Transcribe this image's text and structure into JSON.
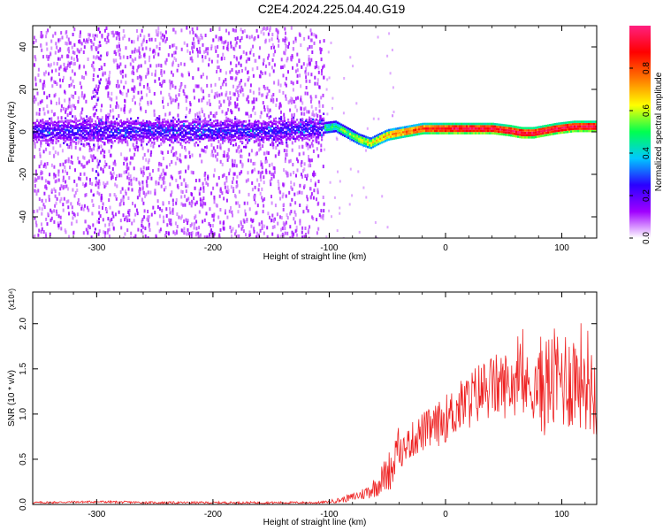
{
  "title": "C2E4.2024.225.04.40.G19",
  "chart_data": [
    {
      "type": "heatmap",
      "name": "spectrogram",
      "xlabel": "Height of straight line (km)",
      "ylabel": "Frequency (Hz)",
      "xlim": [
        -355,
        130
      ],
      "ylim": [
        -50,
        50
      ],
      "x_ticks": [
        "-300",
        "-200",
        "-100",
        "0",
        "100"
      ],
      "x_tick_values": [
        -300,
        -200,
        -100,
        0,
        100
      ],
      "y_ticks": [
        "40",
        "20",
        "0",
        "-20",
        "-40"
      ],
      "y_tick_values": [
        40,
        20,
        0,
        -20,
        -40
      ],
      "colorbar": {
        "label": "Normalized spectral amplitude",
        "ticks": [
          "0.0",
          "0.2",
          "0.4",
          "0.6",
          "0.8"
        ],
        "tick_values": [
          0.0,
          0.2,
          0.4,
          0.6,
          0.8
        ],
        "range": [
          0,
          1
        ],
        "colors": [
          "#ffffff",
          "#a000ff",
          "#2a00ff",
          "#00c8ff",
          "#00ff50",
          "#ffff00",
          "#ff7800",
          "#ff0000",
          "#ff2080"
        ]
      },
      "ridge": {
        "x": [
          -355,
          -300,
          -250,
          -200,
          -150,
          -110,
          -95,
          -85,
          -75,
          -65,
          -58,
          -50,
          -40,
          -30,
          -20,
          -10,
          0,
          20,
          40,
          55,
          65,
          75,
          85,
          95,
          110,
          130
        ],
        "y": [
          1,
          1,
          1,
          1,
          1,
          2,
          3,
          0,
          -3,
          -5,
          -3,
          -1,
          0,
          1,
          2,
          2,
          2,
          2,
          2,
          1,
          0,
          0,
          1,
          2,
          3,
          3
        ]
      }
    },
    {
      "type": "line",
      "name": "snr",
      "xlabel": "Height of straight line (km)",
      "ylabel": "SNR (10 * v/v)",
      "multiplier": "(x10⁴)",
      "xlim": [
        -355,
        130
      ],
      "ylim": [
        0,
        2.35
      ],
      "x_ticks": [
        "-300",
        "-200",
        "-100",
        "0",
        "100"
      ],
      "x_tick_values": [
        -300,
        -200,
        -100,
        0,
        100
      ],
      "y_ticks": [
        "0.0",
        "0.5",
        "1.0",
        "1.5",
        "2.0"
      ],
      "y_tick_values": [
        0,
        0.5,
        1.0,
        1.5,
        2.0
      ],
      "color": "#ee2222",
      "series": [
        {
          "x": [
            -355,
            -300,
            -250,
            -200,
            -150,
            -110,
            -100,
            -90,
            -80,
            -70,
            -60,
            -50,
            -40,
            -30,
            -20,
            -10,
            0,
            10,
            20,
            30,
            40,
            50,
            60,
            70,
            80,
            90,
            100,
            110,
            120,
            130
          ],
          "values": [
            0.02,
            0.03,
            0.02,
            0.02,
            0.02,
            0.02,
            0.03,
            0.05,
            0.08,
            0.12,
            0.2,
            0.35,
            0.55,
            0.7,
            0.8,
            0.85,
            0.95,
            1.05,
            1.15,
            1.25,
            1.3,
            1.32,
            1.35,
            1.3,
            1.3,
            1.35,
            1.4,
            1.4,
            1.45,
            1.2
          ]
        }
      ]
    }
  ]
}
